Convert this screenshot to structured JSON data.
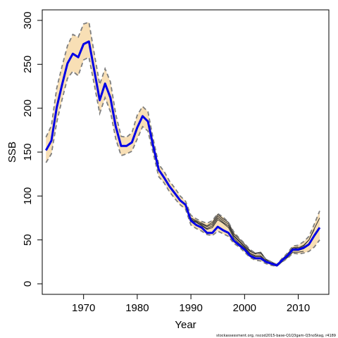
{
  "chart_data": {
    "type": "line",
    "xlabel": "Year",
    "ylabel": "SSB",
    "xlim": [
      1962.3,
      2015.7
    ],
    "ylim": [
      -12,
      312
    ],
    "xticks": [
      1970,
      1980,
      1990,
      2000,
      2010
    ],
    "yticks": [
      0,
      50,
      100,
      150,
      200,
      250,
      300
    ],
    "source_note": "stockassessment.org, nscod2015-base-Q1Q3gam-Q3noSkag, r4189",
    "colors": {
      "estimate": "#0000e6",
      "band": "#f8dfb5",
      "bounds": "#7f7f7f",
      "retro": "#333333"
    },
    "years": [
      1963,
      1964,
      1965,
      1966,
      1967,
      1968,
      1969,
      1970,
      1971,
      1972,
      1973,
      1974,
      1975,
      1976,
      1977,
      1978,
      1979,
      1980,
      1981,
      1982,
      1983,
      1984,
      1985,
      1986,
      1987,
      1988,
      1989,
      1990,
      1991,
      1992,
      1993,
      1994,
      1995,
      1996,
      1997,
      1998,
      1999,
      2000,
      2001,
      2002,
      2003,
      2004,
      2005,
      2006,
      2007,
      2008,
      2009,
      2010,
      2011,
      2012,
      2013,
      2014
    ],
    "series": [
      {
        "key": "estimate",
        "values": [
          152,
          163,
          201,
          227,
          251,
          262,
          258,
          273,
          276,
          243,
          209,
          228,
          212,
          179,
          157,
          157,
          161,
          178,
          191,
          185,
          156,
          130,
          121,
          111,
          103,
          95,
          90,
          72,
          67,
          64,
          58,
          58,
          65,
          61,
          58,
          49,
          44,
          39,
          32,
          29,
          29,
          25,
          23,
          21,
          27,
          32,
          39,
          39,
          41,
          45,
          55,
          64
        ]
      },
      {
        "key": "upper",
        "values": [
          167,
          180,
          223,
          248,
          271,
          284,
          281,
          296,
          298,
          262,
          227,
          245,
          230,
          193,
          168,
          167,
          172,
          192,
          202,
          196,
          164,
          136,
          128,
          117,
          109,
          100,
          94,
          78,
          74,
          71,
          69,
          72,
          80,
          76,
          70,
          59,
          52,
          46,
          39,
          35,
          34,
          28,
          25,
          22,
          29,
          35,
          43,
          44,
          48,
          54,
          68,
          83
        ]
      },
      {
        "key": "lower",
        "values": [
          138,
          148,
          184,
          210,
          234,
          242,
          237,
          255,
          258,
          227,
          194,
          212,
          196,
          165,
          146,
          148,
          151,
          165,
          179,
          174,
          148,
          122,
          115,
          105,
          97,
          90,
          85,
          67,
          63,
          60,
          56,
          55,
          60,
          57,
          54,
          46,
          42,
          36,
          30,
          27,
          26,
          23,
          21,
          20,
          25,
          29,
          35,
          34,
          35,
          37,
          42,
          50
        ]
      },
      {
        "key": "retro-1",
        "values": [
          null,
          null,
          null,
          null,
          null,
          null,
          null,
          null,
          null,
          null,
          null,
          null,
          null,
          null,
          null,
          null,
          null,
          null,
          null,
          null,
          null,
          null,
          null,
          null,
          null,
          null,
          null,
          null,
          null,
          null,
          null,
          null,
          null,
          null,
          null,
          null,
          null,
          null,
          null,
          null,
          null,
          null,
          null,
          null,
          null,
          null,
          null,
          40,
          43,
          50,
          63,
          75
        ]
      },
      {
        "key": "retro-2",
        "values": [
          null,
          null,
          null,
          null,
          null,
          null,
          null,
          null,
          null,
          null,
          null,
          null,
          null,
          null,
          null,
          null,
          null,
          null,
          null,
          null,
          null,
          null,
          null,
          null,
          null,
          null,
          null,
          null,
          null,
          null,
          null,
          null,
          null,
          null,
          null,
          null,
          null,
          null,
          null,
          null,
          null,
          null,
          null,
          null,
          null,
          null,
          null,
          null,
          null,
          null,
          null,
          null
        ]
      },
      {
        "key": "retro-3",
        "values": [
          null,
          null,
          null,
          null,
          null,
          null,
          null,
          null,
          null,
          null,
          null,
          null,
          null,
          null,
          null,
          null,
          null,
          null,
          null,
          null,
          null,
          null,
          null,
          null,
          null,
          null,
          null,
          null,
          null,
          null,
          null,
          null,
          null,
          null,
          null,
          null,
          null,
          null,
          null,
          null,
          null,
          null,
          null,
          null,
          null,
          null,
          null,
          null,
          null,
          null,
          null,
          null
        ]
      }
    ],
    "retro_paths": [
      {
        "key": "retro-a",
        "years": [
          1990,
          1991,
          1992,
          1993,
          1994,
          1995,
          1996,
          1997,
          1998,
          1999,
          2000,
          2001,
          2002,
          2003,
          2004,
          2005,
          2006,
          2007,
          2008,
          2009,
          2010,
          2011,
          2012,
          2013
        ],
        "values": [
          74,
          70,
          68,
          65,
          68,
          77,
          72,
          68,
          55,
          49,
          43,
          37,
          34,
          35,
          27,
          24,
          21,
          27,
          33,
          40,
          41,
          44,
          50,
          62
        ]
      },
      {
        "key": "retro-b",
        "years": [
          1990,
          1991,
          1992,
          1993,
          1994,
          1995,
          1996,
          1997,
          1998,
          1999,
          2000,
          2001,
          2002,
          2003,
          2004,
          2005,
          2006,
          2007,
          2008,
          2009,
          2010,
          2011,
          2012
        ],
        "values": [
          73,
          71,
          67,
          63,
          66,
          75,
          70,
          66,
          54,
          48,
          42,
          35,
          32,
          32,
          26,
          23,
          21,
          26,
          31,
          38,
          38,
          40,
          44
        ]
      },
      {
        "key": "retro-c",
        "years": [
          1990,
          1991,
          1992,
          1993,
          1994,
          1995,
          1996,
          1997,
          1998,
          1999,
          2000,
          2001,
          2002,
          2003,
          2004,
          2005,
          2006,
          2007,
          2008,
          2009,
          2010,
          2011
        ],
        "values": [
          72,
          70,
          66,
          62,
          64,
          73,
          69,
          64,
          52,
          46,
          41,
          34,
          31,
          31,
          25,
          22,
          20,
          25,
          30,
          36,
          36,
          37
        ]
      },
      {
        "key": "retro-d",
        "years": [
          1990,
          1991,
          1992,
          1993,
          1994,
          1995,
          1996,
          1997,
          1998,
          1999,
          2000,
          2001,
          2002,
          2003,
          2004,
          2005,
          2006,
          2007,
          2008,
          2009,
          2010
        ],
        "values": [
          75,
          72,
          69,
          66,
          70,
          79,
          74,
          70,
          57,
          51,
          45,
          38,
          35,
          36,
          28,
          25,
          22,
          28,
          34,
          41,
          42
        ]
      }
    ]
  }
}
